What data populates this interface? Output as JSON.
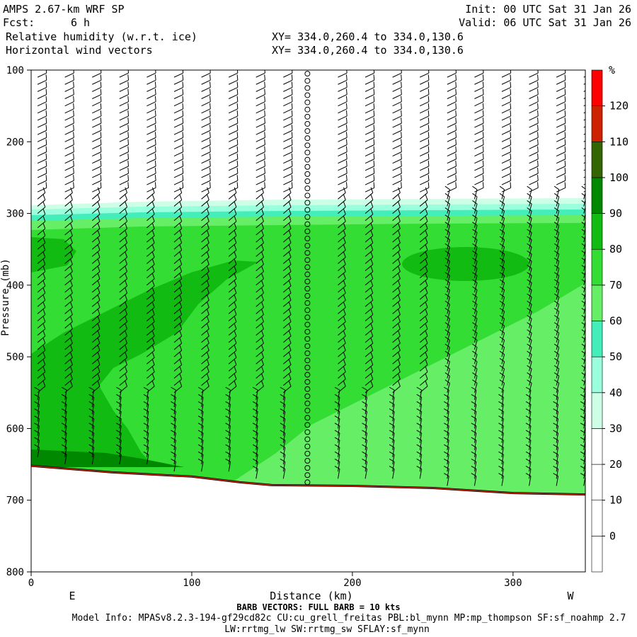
{
  "header": {
    "model": "AMPS 2.67-km WRF SP",
    "fcst_label": "Fcst:",
    "fcst_value": "6 h",
    "init": "Init: 00 UTC Sat 31 Jan 26",
    "valid": "Valid: 06 UTC Sat 31 Jan 26",
    "field1": "Relative humidity (w.r.t. ice)",
    "field2": "Horizontal wind vectors",
    "xy1": "XY= 334.0,260.4 to 334.0,130.6",
    "xy2": "XY= 334.0,260.4 to 334.0,130.6"
  },
  "footer": {
    "barb_note": "BARB VECTORS:  FULL BARB = 10 kts",
    "model_info": "Model Info: MPASv8.2.3-194-gf29cd82c CU:cu_grell_freitas PBL:bl_mynn MP:mp_thompson SF:sf_noahmp 2.7",
    "model_info2": "LW:rrtmg_lw SW:rrtmg_sw SFLAY:sf_mynn"
  },
  "chart_data": {
    "type": "heatmap",
    "xlabel": "Distance (km)",
    "ylabel": "Pressure (mb)",
    "xlim": [
      0,
      345
    ],
    "ylim": [
      800,
      100
    ],
    "x_ticks": [
      0,
      100,
      200,
      300
    ],
    "y_ticks": [
      100,
      200,
      300,
      400,
      500,
      600,
      700,
      800
    ],
    "end_labels": {
      "left": "E",
      "right": "W"
    },
    "colorbar": {
      "unit": "%",
      "levels": [
        0,
        10,
        20,
        30,
        40,
        50,
        60,
        70,
        80,
        90,
        100,
        110,
        120
      ],
      "colors": [
        "#ffffff",
        "#ffffff",
        "#ffffff",
        "#ffffff",
        "#ccffe6",
        "#99ffdd",
        "#44eebb",
        "#66ee66",
        "#33dd33",
        "#11bb11",
        "#008800",
        "#336600",
        "#cc2200",
        "#ff0000"
      ]
    },
    "terrain_pressure": [
      {
        "x": 0,
        "p": 652
      },
      {
        "x": 50,
        "p": 661
      },
      {
        "x": 100,
        "p": 667
      },
      {
        "x": 130,
        "p": 675
      },
      {
        "x": 150,
        "p": 679
      },
      {
        "x": 200,
        "p": 680
      },
      {
        "x": 250,
        "p": 683
      },
      {
        "x": 300,
        "p": 690
      },
      {
        "x": 345,
        "p": 692
      }
    ]
  }
}
